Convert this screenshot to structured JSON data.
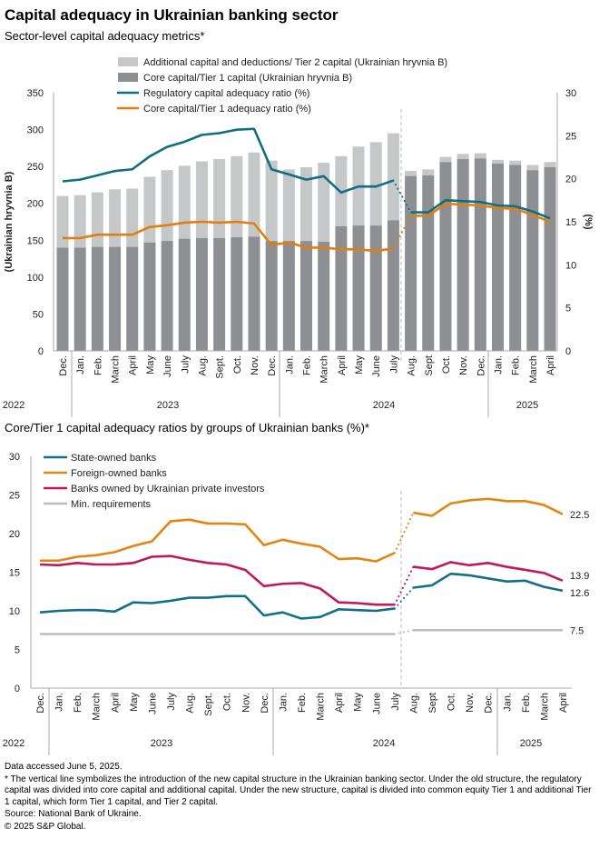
{
  "title": "Capital adequacy in Ukrainian banking sector",
  "subtitle": "Sector-level capital adequacy metrics*",
  "subtitle2": "Core/Tier 1 capital adequacy ratios by groups of Ukrainian banks (%)*",
  "colors": {
    "tier2": "#c6c7c9",
    "core": "#8e8f93",
    "regulatory": "#0e6e86",
    "coreRatio": "#e07f10",
    "state": "#10708a",
    "foreign": "#e38512",
    "private": "#c0195a",
    "min": "#bdbdbd",
    "axis": "#aaaaaa"
  },
  "months": [
    "Dec.",
    "Jan.",
    "Feb.",
    "March",
    "April",
    "May",
    "June",
    "July",
    "Aug.",
    "Sept.",
    "Oct.",
    "Nov.",
    "Dec.",
    "Jan.",
    "Feb.",
    "March",
    "April",
    "May",
    "June",
    "July",
    "Aug.",
    "Sept",
    "Oct.",
    "Nov.",
    "Dec.",
    "Jan.",
    "Feb.",
    "March",
    "April"
  ],
  "years": [
    "2022",
    "2023",
    "2024",
    "2025"
  ],
  "chart_data": [
    {
      "type": "bar",
      "title": "Sector-level capital adequacy metrics*",
      "ylabel": "(Ukrainian hryvnia B)",
      "y2label": "(%)",
      "ylim": [
        0,
        350
      ],
      "y2lim": [
        0,
        30
      ],
      "yticks": [
        "0",
        "50",
        "100",
        "150",
        "200",
        "250",
        "300",
        "350"
      ],
      "y2ticks": [
        "0",
        "5",
        "10",
        "15",
        "20",
        "25",
        "30"
      ],
      "legend": [
        "Additional capital and deductions/ Tier 2 capital (Ukrainian hryvnia B)",
        "Core capital/Tier 1 capital (Ukrainian hryvnia B)",
        "Regulatory capital adequacy ratio (%)",
        "Core capital/Tier 1 adequacy ratio (%)"
      ],
      "total_capital": [
        210,
        211,
        215,
        219,
        220,
        236,
        245,
        251,
        257,
        260,
        264,
        269,
        258,
        246,
        249,
        255,
        264,
        277,
        283,
        295,
        244,
        246,
        263,
        267,
        268,
        259,
        258,
        252,
        256
      ],
      "core_capital": [
        140,
        140,
        141,
        141,
        141,
        147,
        149,
        152,
        153,
        153,
        154,
        155,
        149,
        149,
        149,
        148,
        169,
        170,
        170,
        177,
        237,
        238,
        256,
        260,
        261,
        254,
        252,
        245,
        249
      ],
      "regulatory_ratio": [
        19.7,
        19.9,
        20.4,
        20.9,
        21.1,
        22.6,
        23.7,
        24.3,
        25.1,
        25.3,
        25.7,
        25.8,
        21.1,
        20.5,
        19.9,
        20.3,
        18.4,
        19.1,
        19.1,
        19.8,
        16.1,
        16.1,
        17.5,
        17.4,
        17.3,
        16.9,
        16.8,
        16.2,
        15.4
      ],
      "core_ratio": [
        13.1,
        13.1,
        13.5,
        13.5,
        13.5,
        14.4,
        14.6,
        14.9,
        15.0,
        14.9,
        15.0,
        14.8,
        12.3,
        12.6,
        12.0,
        12.0,
        11.8,
        11.8,
        11.6,
        11.9,
        15.7,
        15.7,
        17.1,
        17.0,
        16.9,
        16.6,
        16.5,
        15.8,
        15.0
      ]
    },
    {
      "type": "line",
      "title": "Core/Tier 1 capital adequacy ratios by groups of Ukrainian banks (%)*",
      "ylim": [
        0,
        30
      ],
      "yticks": [
        "0",
        "5",
        "10",
        "15",
        "20",
        "25",
        "30"
      ],
      "series": [
        {
          "name": "State-owned banks",
          "end_label": "12.6",
          "values": [
            9.8,
            10.0,
            10.1,
            10.1,
            9.9,
            11.1,
            11.0,
            11.3,
            11.7,
            11.7,
            11.9,
            11.9,
            9.4,
            9.8,
            9.0,
            9.2,
            10.2,
            10.1,
            10.0,
            10.3,
            13.0,
            13.3,
            14.8,
            14.6,
            14.2,
            13.8,
            13.9,
            13.1,
            12.6
          ]
        },
        {
          "name": "Foreign-owned banks",
          "end_label": "22.5",
          "values": [
            16.5,
            16.5,
            17.0,
            17.2,
            17.6,
            18.4,
            19.0,
            21.6,
            21.8,
            21.3,
            21.3,
            21.2,
            18.5,
            19.2,
            18.7,
            18.3,
            16.7,
            16.8,
            16.4,
            17.5,
            22.7,
            22.3,
            23.9,
            24.3,
            24.5,
            24.2,
            24.2,
            23.7,
            22.5
          ]
        },
        {
          "name": "Banks owned by Ukrainian private investors",
          "end_label": "13.9",
          "values": [
            16.0,
            15.9,
            16.2,
            16.0,
            16.0,
            16.2,
            17.0,
            17.1,
            16.6,
            16.2,
            16.0,
            15.3,
            13.2,
            13.5,
            13.6,
            12.9,
            11.1,
            11.0,
            10.8,
            10.8,
            15.7,
            15.4,
            16.3,
            15.9,
            16.2,
            15.7,
            15.3,
            14.9,
            13.9
          ]
        },
        {
          "name": "Min. requirements",
          "end_label": "7.5",
          "values": [
            7,
            7,
            7,
            7,
            7,
            7,
            7,
            7,
            7,
            7,
            7,
            7,
            7,
            7,
            7,
            7,
            7,
            7,
            7,
            7,
            7.5,
            7.5,
            7.5,
            7.5,
            7.5,
            7.5,
            7.5,
            7.5,
            7.5
          ]
        }
      ]
    }
  ],
  "footer": {
    "accessed": "Data accessed June 5, 2025.",
    "note": "* The vertical line symbolizes the introduction of the new capital structure in the Ukrainian banking sector. Under the old structure, the regulatory capital was divided into core capital and additional capital. Under the new structure, capital is divided into common equity Tier 1 and additional Tier 1 capital, which form Tier 1 capital, and Tier 2 capital.",
    "source": "Source: National Bank of Ukraine.",
    "copyright": "© 2025 S&P Global."
  }
}
